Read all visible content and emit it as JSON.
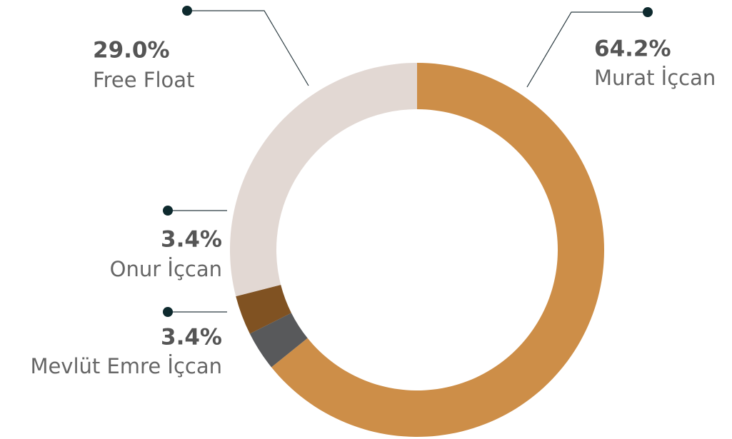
{
  "chart_data": {
    "type": "donut",
    "categories": [
      "Murat İçcan",
      "Mevlüt Emre İçcan",
      "Onur İçcan",
      "Free Float"
    ],
    "values": [
      64.2,
      3.4,
      3.4,
      29.0
    ],
    "value_labels": [
      "64.2%",
      "3.4%",
      "3.4%",
      "29.0%"
    ],
    "colors": [
      "#cd8e48",
      "#58595b",
      "#805222",
      "#e2d8d3"
    ]
  }
}
